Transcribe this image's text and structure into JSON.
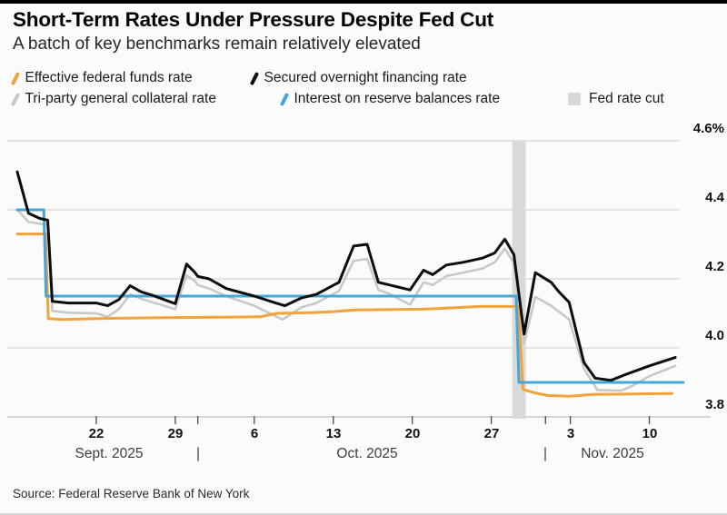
{
  "header": {
    "title": "Short-Term Rates Under Pressure Despite Fed Cut",
    "subtitle": "A batch of key benchmarks remain relatively elevated"
  },
  "legend": {
    "items": [
      {
        "label": "Effective federal funds rate",
        "type": "slash",
        "color": "#f0a33c"
      },
      {
        "label": "Secured overnight financing rate",
        "type": "slash",
        "color": "#0d0d0d"
      },
      {
        "label": "Tri-party general collateral rate",
        "type": "slash",
        "color": "#c7c7c7"
      },
      {
        "label": "Interest on reserve balances rate",
        "type": "slash",
        "color": "#47a6d9"
      },
      {
        "label": "Fed rate cut",
        "type": "square",
        "color": "#d9d9d9"
      }
    ]
  },
  "source": "Source: Federal Reserve Bank of New York",
  "colors": {
    "background": "#fbfbf9",
    "gridline": "#dddddd",
    "axis_line": "#c9c9c9",
    "tick": "#4a4a4a",
    "fed_cut_band": "#d9d9d9"
  },
  "chart_data": {
    "type": "line",
    "title": "Short-Term Rates Under Pressure Despite Fed Cut",
    "subtitle": "A batch of key benchmarks remain relatively elevated",
    "x_unit": "days since 2025-09-15",
    "x_range_days": [
      0,
      59
    ],
    "ylim": [
      3.8,
      4.6
    ],
    "grid": "horizontal",
    "legend_position": "top",
    "y_axis": {
      "labels": [
        {
          "text": "4.6%",
          "value": 4.6
        },
        {
          "text": "4.4",
          "value": 4.4
        },
        {
          "text": "4.2",
          "value": 4.2
        },
        {
          "text": "4.0",
          "value": 4.0
        },
        {
          "text": "3.8",
          "value": 3.8
        }
      ],
      "gridlines": [
        4.6,
        4.4,
        4.2,
        4.0,
        3.8
      ]
    },
    "x_axis": {
      "day_ticks": [
        {
          "label": "22",
          "day": 7
        },
        {
          "label": "29",
          "day": 14
        },
        {
          "label": "",
          "day": 16
        },
        {
          "label": "6",
          "day": 21
        },
        {
          "label": "13",
          "day": 28
        },
        {
          "label": "20",
          "day": 35
        },
        {
          "label": "27",
          "day": 42
        },
        {
          "label": "",
          "day": 46.8
        },
        {
          "label": "3",
          "day": 49
        },
        {
          "label": "10",
          "day": 56
        }
      ],
      "month_labels": [
        {
          "label": "Sept. 2025",
          "day": 8.1
        },
        {
          "label": "|",
          "day": 16
        },
        {
          "label": "Oct. 2025",
          "day": 31
        },
        {
          "label": "|",
          "day": 46.8
        },
        {
          "label": "Nov. 2025",
          "day": 52.7
        }
      ]
    },
    "fed_rate_cut_band": {
      "day_start": 43.85,
      "day_end": 45.05,
      "color": "#d9d9d9",
      "note": "Fed rate cut"
    },
    "series": [
      {
        "id": "tri_party",
        "name": "Tri-party general collateral rate",
        "color": "#c7c7c7",
        "width": 2.5,
        "points": [
          [
            0,
            4.4
          ],
          [
            1,
            4.365
          ],
          [
            2.7,
            4.356
          ],
          [
            3.1,
            4.107
          ],
          [
            4.5,
            4.102
          ],
          [
            7,
            4.1
          ],
          [
            8,
            4.09
          ],
          [
            9,
            4.112
          ],
          [
            10,
            4.155
          ],
          [
            11,
            4.142
          ],
          [
            12,
            4.132
          ],
          [
            14,
            4.112
          ],
          [
            15,
            4.21
          ],
          [
            15.7,
            4.195
          ],
          [
            16,
            4.182
          ],
          [
            17,
            4.172
          ],
          [
            18.5,
            4.15
          ],
          [
            21,
            4.122
          ],
          [
            23.5,
            4.082
          ],
          [
            25.2,
            4.118
          ],
          [
            26.5,
            4.13
          ],
          [
            28.5,
            4.165
          ],
          [
            29.8,
            4.252
          ],
          [
            31,
            4.258
          ],
          [
            32,
            4.168
          ],
          [
            33,
            4.156
          ],
          [
            34.8,
            4.125
          ],
          [
            36,
            4.19
          ],
          [
            36.8,
            4.182
          ],
          [
            38,
            4.208
          ],
          [
            39.5,
            4.218
          ],
          [
            41.2,
            4.23
          ],
          [
            42.3,
            4.248
          ],
          [
            43.2,
            4.288
          ],
          [
            44,
            4.245
          ],
          [
            44.9,
            4.012
          ],
          [
            45.9,
            4.148
          ],
          [
            47.3,
            4.122
          ],
          [
            48.9,
            4.082
          ],
          [
            50.2,
            3.94
          ],
          [
            51.4,
            3.878
          ],
          [
            53.5,
            3.876
          ],
          [
            54.5,
            3.89
          ],
          [
            56,
            3.918
          ],
          [
            58.3,
            3.948
          ]
        ]
      },
      {
        "id": "effr",
        "name": "Effective federal funds rate",
        "color": "#f0a33c",
        "width": 3,
        "points": [
          [
            0,
            4.33
          ],
          [
            2.5,
            4.33
          ],
          [
            2.75,
            4.085
          ],
          [
            4,
            4.082
          ],
          [
            7,
            4.085
          ],
          [
            14,
            4.088
          ],
          [
            21.5,
            4.09
          ],
          [
            23,
            4.1
          ],
          [
            26,
            4.102
          ],
          [
            28,
            4.105
          ],
          [
            30,
            4.11
          ],
          [
            36,
            4.112
          ],
          [
            38,
            4.115
          ],
          [
            41,
            4.12
          ],
          [
            44.4,
            4.12
          ],
          [
            44.8,
            3.88
          ],
          [
            45.8,
            3.87
          ],
          [
            47,
            3.862
          ],
          [
            49,
            3.86
          ],
          [
            51,
            3.865
          ],
          [
            58,
            3.868
          ]
        ]
      },
      {
        "id": "iorb",
        "name": "Interest on reserve balances rate",
        "color": "#47a6d9",
        "width": 3,
        "points": [
          [
            0,
            4.4
          ],
          [
            2.35,
            4.4
          ],
          [
            2.55,
            4.15
          ],
          [
            44.2,
            4.15
          ],
          [
            44.45,
            3.9
          ],
          [
            59,
            3.9
          ]
        ]
      },
      {
        "id": "sofr",
        "name": "Secured overnight financing rate",
        "color": "#0d0d0d",
        "width": 3,
        "points": [
          [
            0,
            4.51
          ],
          [
            1,
            4.39
          ],
          [
            2,
            4.375
          ],
          [
            2.7,
            4.37
          ],
          [
            3.1,
            4.135
          ],
          [
            4.5,
            4.13
          ],
          [
            7,
            4.13
          ],
          [
            8,
            4.122
          ],
          [
            9,
            4.14
          ],
          [
            10,
            4.18
          ],
          [
            11,
            4.162
          ],
          [
            12,
            4.152
          ],
          [
            13,
            4.14
          ],
          [
            14,
            4.128
          ],
          [
            15,
            4.243
          ],
          [
            15.7,
            4.22
          ],
          [
            16,
            4.207
          ],
          [
            17,
            4.2
          ],
          [
            18.5,
            4.172
          ],
          [
            21,
            4.15
          ],
          [
            22.8,
            4.131
          ],
          [
            23.7,
            4.122
          ],
          [
            25.2,
            4.145
          ],
          [
            26.5,
            4.155
          ],
          [
            28.5,
            4.19
          ],
          [
            29.8,
            4.295
          ],
          [
            31,
            4.3
          ],
          [
            32,
            4.19
          ],
          [
            33,
            4.182
          ],
          [
            34.8,
            4.168
          ],
          [
            36,
            4.225
          ],
          [
            36.8,
            4.212
          ],
          [
            38,
            4.24
          ],
          [
            39.5,
            4.248
          ],
          [
            41.2,
            4.26
          ],
          [
            42.3,
            4.275
          ],
          [
            43.2,
            4.315
          ],
          [
            44,
            4.27
          ],
          [
            44.9,
            4.04
          ],
          [
            45.9,
            4.218
          ],
          [
            47.3,
            4.19
          ],
          [
            48,
            4.162
          ],
          [
            48.9,
            4.132
          ],
          [
            50.2,
            3.958
          ],
          [
            51.2,
            3.912
          ],
          [
            52.6,
            3.906
          ],
          [
            54,
            3.924
          ],
          [
            56,
            3.948
          ],
          [
            58.3,
            3.972
          ]
        ]
      }
    ]
  }
}
